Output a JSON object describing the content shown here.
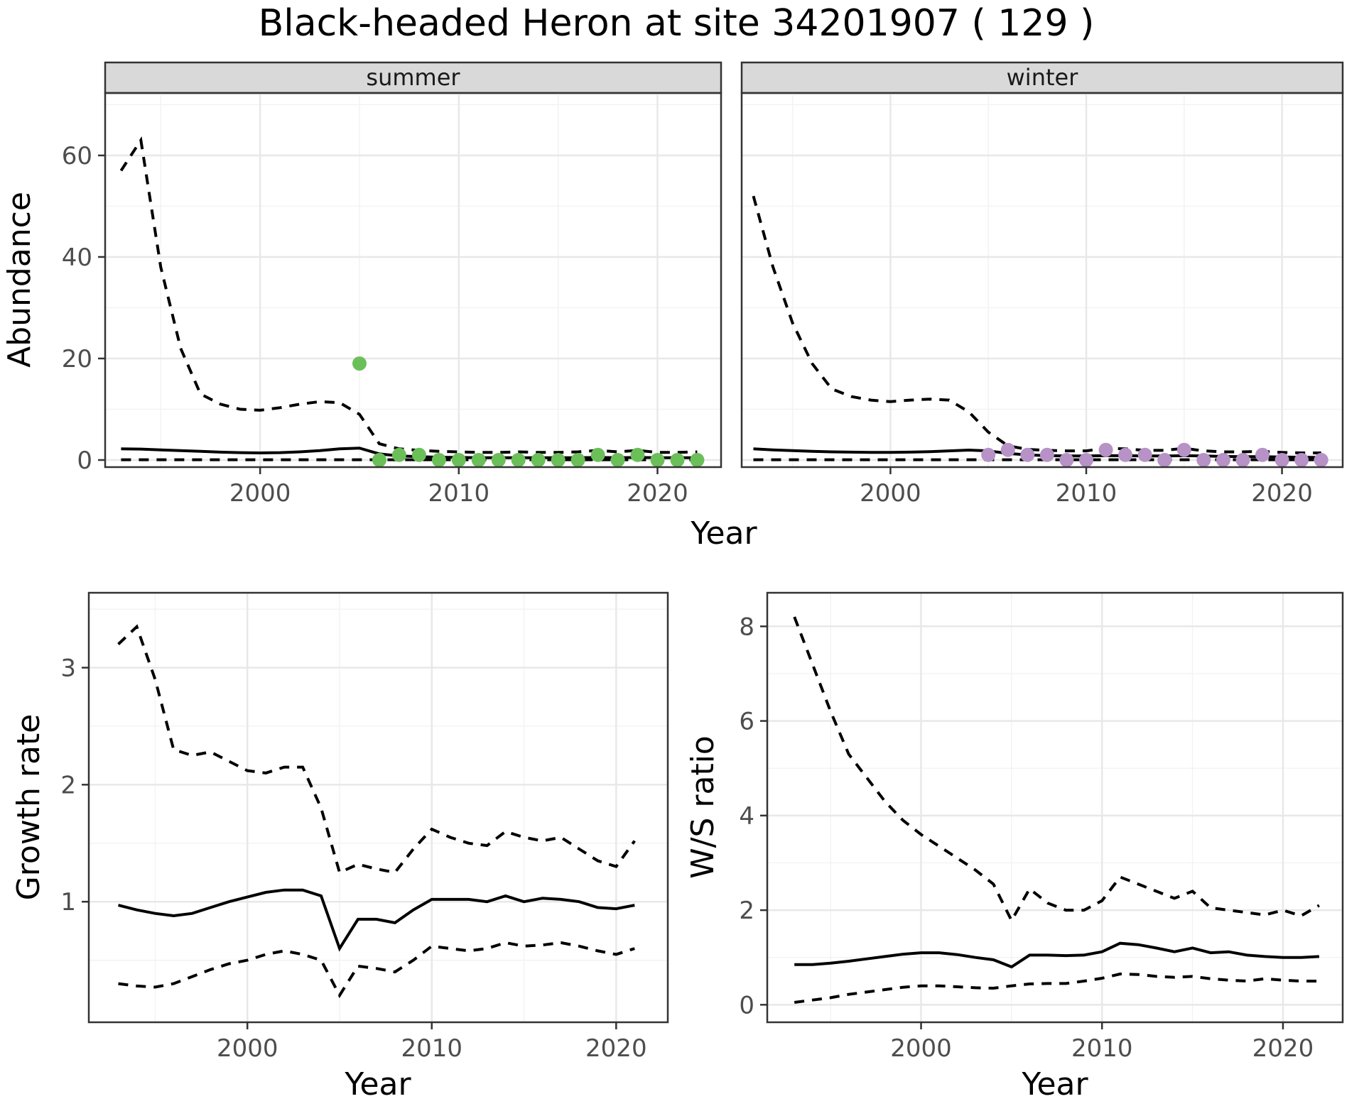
{
  "title": "Black-headed Heron at site 34201907 ( 129 )",
  "colors": {
    "summer_points": "#6abf59",
    "winter_points": "#b692c7",
    "line": "#000000",
    "grid_major": "#e8e8e8",
    "grid_minor": "#f2f2f2",
    "panel_border": "#333333",
    "strip_fill": "#d9d9d9",
    "tick_text": "#4d4d4d"
  },
  "chart_data": [
    {
      "id": "abundance-summer",
      "type": "line",
      "title": "summer",
      "xlabel": "Year",
      "ylabel": "Abundance",
      "grid": true,
      "legend": "none",
      "xlim": [
        1992.2,
        2023.2
      ],
      "ylim": [
        -1.4,
        72.3
      ],
      "x_major_ticks": [
        2000,
        2010,
        2020
      ],
      "x_minor_ticks": [
        1995,
        2005,
        2015
      ],
      "y_major_ticks": [
        0,
        20,
        40,
        60
      ],
      "y_minor_ticks": [
        10,
        30,
        50,
        70
      ],
      "x": [
        1993,
        1994,
        1995,
        1996,
        1997,
        1998,
        1999,
        2000,
        2001,
        2002,
        2003,
        2004,
        2005,
        2006,
        2007,
        2008,
        2009,
        2010,
        2011,
        2012,
        2013,
        2014,
        2015,
        2016,
        2017,
        2018,
        2019,
        2020,
        2021,
        2022
      ],
      "series": [
        {
          "name": "upper-95ci",
          "style": "dashed",
          "values": [
            57,
            63,
            38,
            22,
            13,
            11,
            10,
            9.8,
            10.3,
            11,
            11.5,
            11.3,
            9,
            3.2,
            2.2,
            1.9,
            1.7,
            1.6,
            1.5,
            1.5,
            1.6,
            1.5,
            1.5,
            1.6,
            1.9,
            1.6,
            1.9,
            1.5,
            1.5,
            1.6
          ]
        },
        {
          "name": "median",
          "style": "solid",
          "values": [
            2.2,
            2.15,
            2.0,
            1.85,
            1.7,
            1.55,
            1.45,
            1.4,
            1.45,
            1.6,
            1.85,
            2.2,
            2.35,
            1.2,
            0.8,
            0.65,
            0.55,
            0.5,
            0.45,
            0.45,
            0.45,
            0.45,
            0.45,
            0.45,
            0.5,
            0.45,
            0.5,
            0.45,
            0.45,
            0.45
          ]
        },
        {
          "name": "lower-95ci",
          "style": "dashed",
          "values": [
            0.05,
            0.05,
            0.05,
            0.05,
            0.05,
            0.05,
            0.05,
            0.05,
            0.05,
            0.05,
            0.05,
            0.05,
            0.05,
            0.05,
            0.05,
            0.05,
            0.05,
            0.05,
            0.05,
            0.05,
            0.05,
            0.05,
            0.05,
            0.05,
            0.05,
            0.05,
            0.05,
            0.05,
            0.05,
            0.05
          ]
        }
      ],
      "points": {
        "name": "observed-counts-summer",
        "color_key": "summer_points",
        "x": [
          2005,
          2006,
          2007,
          2008,
          2009,
          2010,
          2011,
          2012,
          2013,
          2014,
          2015,
          2016,
          2017,
          2018,
          2019,
          2020,
          2021,
          2022
        ],
        "y": [
          19,
          0,
          1,
          1,
          0,
          0,
          0,
          0,
          0,
          0,
          0,
          0,
          1,
          0,
          1,
          0,
          0,
          0
        ]
      }
    },
    {
      "id": "abundance-winter",
      "type": "line",
      "title": "winter",
      "xlabel": "Year",
      "ylabel": "Abundance",
      "grid": true,
      "legend": "none",
      "xlim": [
        1992.4,
        2023.1
      ],
      "ylim": [
        -1.4,
        72.3
      ],
      "x_major_ticks": [
        2000,
        2010,
        2020
      ],
      "x_minor_ticks": [
        1995,
        2005,
        2015
      ],
      "y_major_ticks": [
        0,
        20,
        40,
        60
      ],
      "y_minor_ticks": [
        10,
        30,
        50,
        70
      ],
      "x": [
        1993,
        1994,
        1995,
        1996,
        1997,
        1998,
        1999,
        2000,
        2001,
        2002,
        2003,
        2004,
        2005,
        2006,
        2007,
        2008,
        2009,
        2010,
        2011,
        2012,
        2013,
        2014,
        2015,
        2016,
        2017,
        2018,
        2019,
        2020,
        2021,
        2022
      ],
      "series": [
        {
          "name": "upper-95ci",
          "style": "dashed",
          "values": [
            52,
            38,
            27,
            19,
            14,
            12.5,
            11.8,
            11.5,
            11.8,
            12,
            11.8,
            9.5,
            5.5,
            2.8,
            2.1,
            1.9,
            1.8,
            1.8,
            2.3,
            2.2,
            1.9,
            1.9,
            2.3,
            1.8,
            1.6,
            1.6,
            1.7,
            1.5,
            1.4,
            1.4
          ]
        },
        {
          "name": "median",
          "style": "solid",
          "values": [
            2.2,
            2.0,
            1.85,
            1.7,
            1.6,
            1.55,
            1.5,
            1.5,
            1.55,
            1.65,
            1.8,
            1.95,
            1.8,
            1.3,
            1.0,
            0.85,
            0.8,
            0.8,
            0.85,
            0.85,
            0.8,
            0.8,
            0.85,
            0.8,
            0.7,
            0.65,
            0.65,
            0.6,
            0.55,
            0.5
          ]
        },
        {
          "name": "lower-95ci",
          "style": "dashed",
          "values": [
            0.05,
            0.05,
            0.05,
            0.05,
            0.05,
            0.05,
            0.05,
            0.05,
            0.05,
            0.05,
            0.05,
            0.05,
            0.05,
            0.05,
            0.05,
            0.05,
            0.05,
            0.05,
            0.05,
            0.05,
            0.05,
            0.05,
            0.05,
            0.05,
            0.05,
            0.05,
            0.05,
            0.05,
            0.05,
            0.05
          ]
        }
      ],
      "points": {
        "name": "observed-counts-winter",
        "color_key": "winter_points",
        "x": [
          2005,
          2006,
          2007,
          2008,
          2009,
          2010,
          2011,
          2012,
          2013,
          2014,
          2015,
          2016,
          2017,
          2018,
          2019,
          2020,
          2021,
          2022
        ],
        "y": [
          1,
          2,
          1,
          1,
          0,
          0,
          2,
          1,
          1,
          0,
          2,
          0,
          0,
          0,
          1,
          0,
          0,
          0
        ]
      }
    },
    {
      "id": "growth-rate",
      "type": "line",
      "title": "",
      "xlabel": "Year",
      "ylabel": "Growth rate",
      "grid": true,
      "legend": "none",
      "xlim": [
        1991.4,
        2022.8
      ],
      "ylim": [
        -0.03,
        3.64
      ],
      "x_major_ticks": [
        2000,
        2010,
        2020
      ],
      "x_minor_ticks": [
        1995,
        2005,
        2015
      ],
      "y_major_ticks": [
        1,
        2,
        3
      ],
      "y_minor_ticks": [
        0.5,
        1.5,
        2.5,
        3.5
      ],
      "x": [
        1993,
        1994,
        1995,
        1996,
        1997,
        1998,
        1999,
        2000,
        2001,
        2002,
        2003,
        2004,
        2005,
        2006,
        2007,
        2008,
        2009,
        2010,
        2011,
        2012,
        2013,
        2014,
        2015,
        2016,
        2017,
        2018,
        2019,
        2020,
        2021
      ],
      "series": [
        {
          "name": "upper-95ci",
          "style": "dashed",
          "values": [
            3.2,
            3.35,
            2.9,
            2.3,
            2.25,
            2.28,
            2.2,
            2.12,
            2.1,
            2.15,
            2.15,
            1.8,
            1.25,
            1.32,
            1.28,
            1.25,
            1.45,
            1.62,
            1.55,
            1.5,
            1.48,
            1.6,
            1.55,
            1.52,
            1.55,
            1.45,
            1.35,
            1.3,
            1.52
          ]
        },
        {
          "name": "median",
          "style": "solid",
          "values": [
            0.97,
            0.93,
            0.9,
            0.88,
            0.9,
            0.95,
            1.0,
            1.04,
            1.08,
            1.1,
            1.1,
            1.05,
            0.6,
            0.85,
            0.85,
            0.82,
            0.93,
            1.02,
            1.02,
            1.02,
            1.0,
            1.05,
            1.0,
            1.03,
            1.02,
            1.0,
            0.95,
            0.94,
            0.97
          ]
        },
        {
          "name": "lower-95ci",
          "style": "dashed",
          "values": [
            0.3,
            0.28,
            0.27,
            0.3,
            0.36,
            0.42,
            0.47,
            0.5,
            0.55,
            0.58,
            0.55,
            0.5,
            0.2,
            0.45,
            0.43,
            0.4,
            0.5,
            0.62,
            0.6,
            0.58,
            0.6,
            0.65,
            0.62,
            0.63,
            0.65,
            0.62,
            0.58,
            0.55,
            0.6
          ]
        }
      ]
    },
    {
      "id": "ws-ratio",
      "type": "line",
      "title": "",
      "xlabel": "Year",
      "ylabel": "W/S ratio",
      "grid": true,
      "legend": "none",
      "xlim": [
        1991.5,
        2023.3
      ],
      "ylim": [
        -0.37,
        8.71
      ],
      "x_major_ticks": [
        2000,
        2010,
        2020
      ],
      "x_minor_ticks": [
        1995,
        2005,
        2015
      ],
      "y_major_ticks": [
        0,
        2,
        4,
        6,
        8
      ],
      "y_minor_ticks": [
        1,
        3,
        5,
        7
      ],
      "x": [
        1993,
        1994,
        1995,
        1996,
        1997,
        1998,
        1999,
        2000,
        2001,
        2002,
        2003,
        2004,
        2005,
        2006,
        2007,
        2008,
        2009,
        2010,
        2011,
        2012,
        2013,
        2014,
        2015,
        2016,
        2017,
        2018,
        2019,
        2020,
        2021,
        2022
      ],
      "series": [
        {
          "name": "upper-95ci",
          "style": "dashed",
          "values": [
            8.2,
            7.2,
            6.2,
            5.3,
            4.8,
            4.3,
            3.9,
            3.6,
            3.35,
            3.1,
            2.85,
            2.55,
            1.78,
            2.45,
            2.15,
            2.0,
            2.0,
            2.2,
            2.7,
            2.55,
            2.4,
            2.25,
            2.4,
            2.05,
            2.0,
            1.95,
            1.9,
            2.0,
            1.88,
            2.1
          ]
        },
        {
          "name": "median",
          "style": "solid",
          "values": [
            0.85,
            0.85,
            0.88,
            0.92,
            0.97,
            1.02,
            1.07,
            1.1,
            1.1,
            1.06,
            1.0,
            0.95,
            0.8,
            1.05,
            1.05,
            1.04,
            1.05,
            1.12,
            1.3,
            1.27,
            1.2,
            1.12,
            1.2,
            1.1,
            1.12,
            1.05,
            1.02,
            1.0,
            1.0,
            1.02
          ]
        },
        {
          "name": "lower-95ci",
          "style": "dashed",
          "values": [
            0.05,
            0.1,
            0.15,
            0.22,
            0.27,
            0.32,
            0.37,
            0.4,
            0.4,
            0.38,
            0.36,
            0.35,
            0.4,
            0.44,
            0.45,
            0.45,
            0.5,
            0.56,
            0.65,
            0.64,
            0.6,
            0.58,
            0.6,
            0.55,
            0.52,
            0.5,
            0.55,
            0.52,
            0.5,
            0.5
          ]
        }
      ]
    }
  ]
}
